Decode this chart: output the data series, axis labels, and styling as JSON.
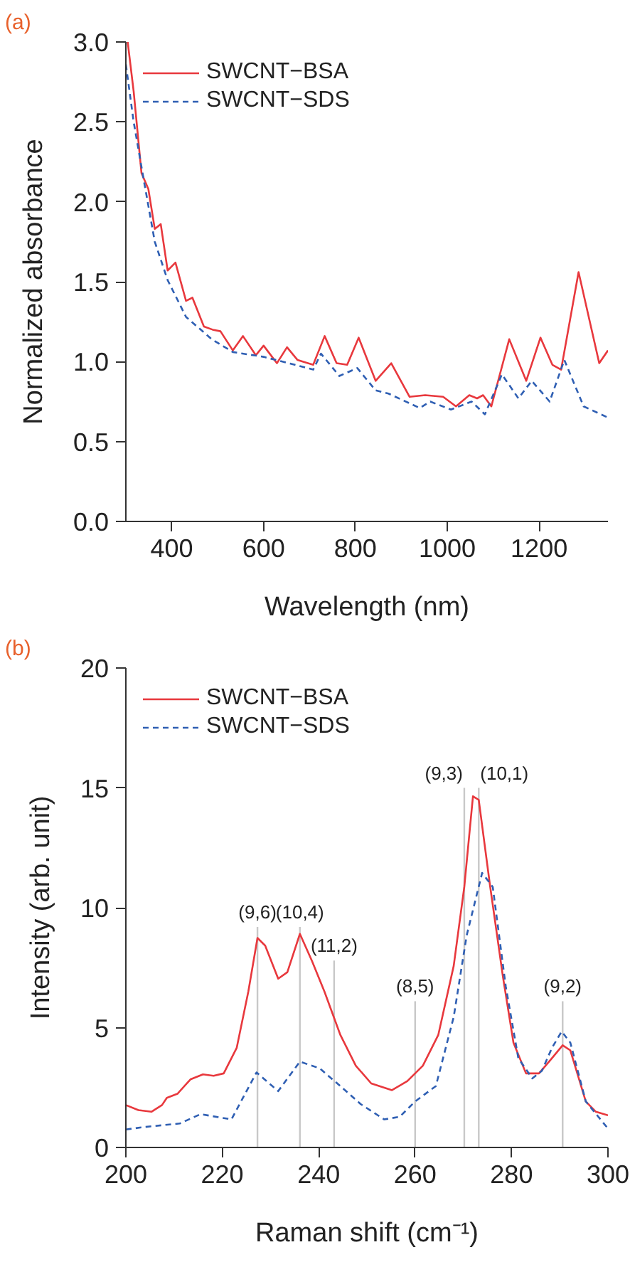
{
  "chart_data": [
    {
      "type": "line",
      "title": "(a)",
      "xlabel": "Wavelength (nm)",
      "ylabel": "Normalized absorbance",
      "xlim": [
        300,
        1350
      ],
      "ylim": [
        0,
        3.0
      ],
      "xticks": [
        400,
        600,
        800,
        1000,
        1200
      ],
      "yticks": [
        {
          "value": 0,
          "label": "0.0"
        },
        0.5,
        {
          "value": 1,
          "label": "1.0"
        },
        1.5,
        {
          "value": 2,
          "label": "2.0"
        },
        2.5,
        {
          "value": 3,
          "label": "3.0"
        }
      ],
      "grid": false,
      "legend": "top left",
      "marker": "none",
      "series": [
        {
          "name": "SWCNT−BSA",
          "color": "#e8383d",
          "line_style": "solid",
          "x": [
            304,
            317,
            334,
            349,
            363,
            376,
            391,
            408,
            431,
            445,
            470,
            489,
            506,
            533,
            555,
            583,
            600,
            629,
            651,
            674,
            708,
            733,
            759,
            782,
            807,
            844,
            878,
            918,
            952,
            991,
            1019,
            1048,
            1065,
            1078,
            1096,
            1135,
            1172,
            1203,
            1229,
            1248,
            1286,
            1331,
            1350
          ],
          "values": [
            3.0,
            2.69,
            2.18,
            2.08,
            1.83,
            1.86,
            1.57,
            1.62,
            1.38,
            1.4,
            1.22,
            1.2,
            1.19,
            1.07,
            1.16,
            1.04,
            1.1,
            0.99,
            1.09,
            1.01,
            0.98,
            1.16,
            0.99,
            0.98,
            1.15,
            0.88,
            0.99,
            0.78,
            0.79,
            0.78,
            0.72,
            0.79,
            0.77,
            0.79,
            0.72,
            1.14,
            0.88,
            1.15,
            0.98,
            0.95,
            1.56,
            0.99,
            1.07
          ]
        },
        {
          "name": "SWCNT−SDS",
          "color": "#2f5fb3",
          "line_style": "dashed",
          "x": [
            300,
            317,
            340,
            363,
            391,
            431,
            487,
            533,
            600,
            668,
            708,
            725,
            765,
            804,
            844,
            872,
            940,
            963,
            1008,
            1053,
            1082,
            1119,
            1155,
            1184,
            1223,
            1255,
            1297,
            1350
          ],
          "values": [
            2.86,
            2.5,
            2.12,
            1.75,
            1.51,
            1.28,
            1.14,
            1.06,
            1.03,
            0.98,
            0.95,
            1.05,
            0.91,
            0.96,
            0.82,
            0.8,
            0.71,
            0.75,
            0.7,
            0.75,
            0.67,
            0.92,
            0.77,
            0.88,
            0.75,
            1.01,
            0.72,
            0.65
          ]
        }
      ]
    },
    {
      "type": "line",
      "title": "(b)",
      "xlabel": "Raman shift (cm⁻¹)",
      "ylabel": "Intensity (arb. unit)",
      "xlim": [
        200,
        300
      ],
      "ylim": [
        0,
        20
      ],
      "xticks": [
        200,
        220,
        240,
        260,
        280,
        300
      ],
      "yticks": [
        0,
        5,
        10,
        15,
        20
      ],
      "grid": false,
      "legend": "top left",
      "marker": "none",
      "series": [
        {
          "name": "SWCNT−BSA",
          "color": "#e8383d",
          "line_style": "solid",
          "x": [
            200,
            202.6,
            205.3,
            207.5,
            208.5,
            210.7,
            213.4,
            216,
            218.2,
            220.3,
            223,
            225.4,
            227.3,
            228.9,
            231.6,
            233.5,
            236.1,
            238.6,
            241.2,
            244.5,
            247.7,
            250.9,
            255.2,
            258.4,
            261.6,
            264.8,
            268,
            270.2,
            272,
            273.2,
            275.5,
            278.2,
            280.4,
            283,
            285.7,
            288.4,
            290.6,
            292.2,
            295.4,
            297.5,
            300
          ],
          "values": [
            1.77,
            1.56,
            1.49,
            1.77,
            2.07,
            2.24,
            2.84,
            3.05,
            2.99,
            3.09,
            4.16,
            6.5,
            8.74,
            8.42,
            7.04,
            7.31,
            8.91,
            7.78,
            6.5,
            4.69,
            3.41,
            2.67,
            2.39,
            2.77,
            3.41,
            4.69,
            7.57,
            10.87,
            14.65,
            14.5,
            10.98,
            7.14,
            4.37,
            3.09,
            3.09,
            3.73,
            4.26,
            4.05,
            1.92,
            1.49,
            1.34
          ]
        },
        {
          "name": "SWCNT−SDS",
          "color": "#2f5fb3",
          "line_style": "dashed",
          "x": [
            200,
            203.7,
            211.2,
            215.5,
            221.9,
            227.1,
            231.6,
            236.1,
            240.2,
            244.5,
            248.7,
            253.6,
            256.8,
            260,
            264.3,
            268,
            270.7,
            273.9,
            276.1,
            278.8,
            281.4,
            284.3,
            286.3,
            288.4,
            290.4,
            292.2,
            295.4,
            300
          ],
          "values": [
            0.75,
            0.85,
            1.0,
            1.39,
            1.17,
            3.13,
            2.35,
            3.58,
            3.3,
            2.56,
            1.81,
            1.17,
            1.28,
            1.92,
            2.56,
            5.44,
            8.85,
            11.45,
            10.87,
            6.72,
            3.73,
            2.88,
            3.2,
            4.16,
            4.84,
            4.37,
            1.92,
            0.79
          ]
        }
      ],
      "ref_lines": [
        {
          "axis": "x",
          "value": 227.3,
          "color": "#c8c8c8"
        },
        {
          "axis": "x",
          "value": 236.1,
          "color": "#c8c8c8"
        },
        {
          "axis": "x",
          "value": 243.2,
          "color": "#c8c8c8"
        },
        {
          "axis": "x",
          "value": 260,
          "color": "#c8c8c8"
        },
        {
          "axis": "x",
          "value": 270.2,
          "color": "#c8c8c8"
        },
        {
          "axis": "x",
          "value": 273.2,
          "color": "#c8c8c8"
        },
        {
          "axis": "x",
          "value": 290.6,
          "color": "#c8c8c8"
        }
      ],
      "annotations": [
        {
          "text": "(9,6)",
          "x": 227.3,
          "y": 9.2
        },
        {
          "text": "(10,4)",
          "x": 236.1,
          "y": 9.2
        },
        {
          "text": "(11,2)",
          "x": 243.2,
          "y": 7.8
        },
        {
          "text": "(8,5)",
          "x": 260,
          "y": 6.1
        },
        {
          "text": "(9,3)",
          "x": 270.2,
          "y": 15
        },
        {
          "text": "(10,1)",
          "x": 273.2,
          "y": 15
        },
        {
          "text": "(9,2)",
          "x": 290.6,
          "y": 6.1
        }
      ]
    }
  ]
}
